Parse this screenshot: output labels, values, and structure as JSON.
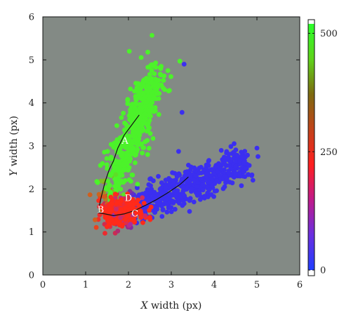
{
  "chart_data": {
    "type": "scatter",
    "title": "",
    "xlabel": {
      "var": "X",
      "rest": " width (px)"
    },
    "ylabel": {
      "var": "Y",
      "rest": " width (px)"
    },
    "xlim": [
      0,
      6
    ],
    "ylim": [
      0,
      6
    ],
    "xticks": [
      "0",
      "1",
      "2",
      "3",
      "4",
      "5",
      "6"
    ],
    "yticks": [
      "0",
      "1",
      "2",
      "3",
      "4",
      "5",
      "6"
    ],
    "plot_background": "#838a85",
    "colorbar": {
      "range": [
        0,
        520
      ],
      "ticks": [
        "0",
        "250",
        "500"
      ],
      "tick_values": [
        0,
        250,
        500
      ],
      "stops": [
        "#1f3dff",
        "#6a2fe0",
        "#c01a8a",
        "#ff1f1f",
        "#c2431a",
        "#7d6a10",
        "#5fd31a",
        "#2bff2b"
      ]
    },
    "cluster_colors": {
      "upper_branch": "#4cf22a",
      "lower_branch": "#3b2ff0",
      "base": "#ff2a1a"
    },
    "curves": [
      {
        "name": "upper",
        "x": [
          1.3,
          1.32,
          1.36,
          1.4,
          1.45,
          1.55,
          1.65,
          1.75,
          1.9,
          2.05,
          2.25
        ],
        "y": [
          1.45,
          1.6,
          1.8,
          1.95,
          2.15,
          2.45,
          2.65,
          2.95,
          3.25,
          3.45,
          3.72
        ]
      },
      {
        "name": "lower",
        "x": [
          1.3,
          1.45,
          1.65,
          1.9,
          2.15,
          2.4,
          2.65,
          2.9,
          3.2,
          3.4
        ],
        "y": [
          1.45,
          1.42,
          1.38,
          1.42,
          1.5,
          1.62,
          1.75,
          1.9,
          2.1,
          2.28
        ]
      }
    ],
    "labels": [
      {
        "text": "A",
        "x": 1.92,
        "y": 3.05
      },
      {
        "text": "B",
        "x": 1.35,
        "y": 1.45
      },
      {
        "text": "C",
        "x": 2.15,
        "y": 1.36
      },
      {
        "text": "D",
        "x": 2.0,
        "y": 1.72
      }
    ]
  }
}
